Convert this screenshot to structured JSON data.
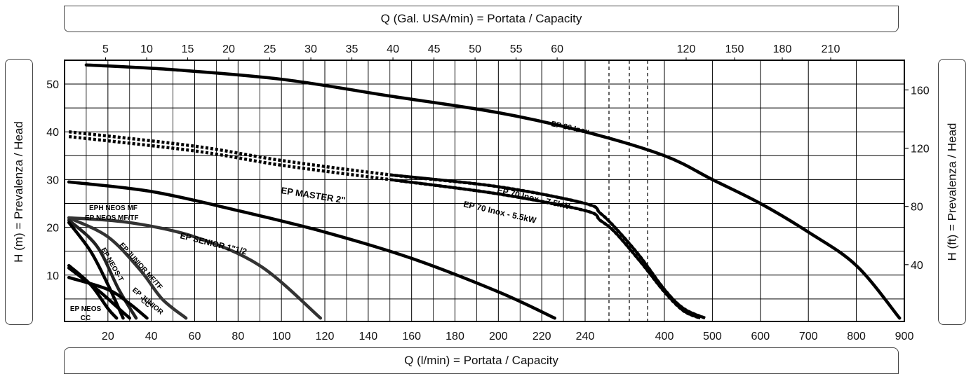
{
  "labels": {
    "top_axis": "Q (Gal. USA/min) = Portata / Capacity",
    "bottom_axis": "Q (l/min) = Portata / Capacity",
    "left_axis": "H (m) = Prevalenza / Head",
    "right_axis": "H (ft) = Prevalenza / Head"
  },
  "chart_data": {
    "type": "line",
    "xlabel": "Q (l/min) = Portata / Capacity",
    "ylabel": "H (m) = Prevalenza / Head",
    "x_ticks": [
      "20",
      "40",
      "60",
      "80",
      "100",
      "120",
      "140",
      "160",
      "180",
      "200",
      "220",
      "240",
      "400",
      "500",
      "600",
      "700",
      "800",
      "900"
    ],
    "x_top_ticks": [
      "5",
      "10",
      "15",
      "20",
      "25",
      "30",
      "35",
      "40",
      "45",
      "50",
      "55",
      "60",
      "120",
      "150",
      "180",
      "210"
    ],
    "y_ticks": [
      "10",
      "20",
      "30",
      "40",
      "50"
    ],
    "y_right_ticks": [
      "40",
      "80",
      "120",
      "160"
    ],
    "ylim": [
      0,
      55
    ],
    "grid": true,
    "series": [
      {
        "name": "EP 80 Inox",
        "label": "EP 80 Inox",
        "style": "solid",
        "points": [
          [
            10,
            54
          ],
          [
            50,
            53
          ],
          [
            100,
            51
          ],
          [
            150,
            47.5
          ],
          [
            200,
            44
          ],
          [
            240,
            40
          ],
          [
            400,
            35
          ],
          [
            500,
            30
          ],
          [
            600,
            25
          ],
          [
            700,
            19
          ],
          [
            800,
            12
          ],
          [
            890,
            1
          ]
        ]
      },
      {
        "name": "EP 70 Inox - 7.5kW",
        "label": "EP 70 Inox - 7.5kW",
        "style": "mixed",
        "points": [
          [
            2,
            40
          ],
          [
            60,
            37
          ],
          [
            100,
            34
          ],
          [
            150,
            31
          ],
          [
            200,
            28.5
          ],
          [
            240,
            25
          ],
          [
            270,
            23
          ],
          [
            300,
            20
          ],
          [
            350,
            14
          ],
          [
            400,
            7
          ],
          [
            440,
            3
          ],
          [
            485,
            1
          ]
        ]
      },
      {
        "name": "EP 70 Inox - 5.5kW",
        "label": "EP 70 Inox - 5.5kW",
        "style": "mixed",
        "points": [
          [
            2,
            39
          ],
          [
            60,
            36
          ],
          [
            100,
            33
          ],
          [
            150,
            30
          ],
          [
            200,
            27
          ],
          [
            240,
            23.5
          ],
          [
            270,
            21.5
          ],
          [
            300,
            19
          ],
          [
            350,
            13
          ],
          [
            400,
            6.5
          ],
          [
            440,
            2.5
          ],
          [
            475,
            1
          ]
        ]
      },
      {
        "name": "EP MASTER 2\"",
        "label": "EP MASTER 2\"",
        "style": "solid",
        "points": [
          [
            2,
            29.5
          ],
          [
            40,
            27.5
          ],
          [
            80,
            23.5
          ],
          [
            120,
            19
          ],
          [
            160,
            13.5
          ],
          [
            200,
            6.5
          ],
          [
            226,
            1
          ]
        ]
      },
      {
        "name": "EP SENIOR 1\"1/2",
        "label": "EP SENIOR 1\"1/2",
        "style": "solid",
        "points": [
          [
            2,
            22
          ],
          [
            30,
            21
          ],
          [
            60,
            18
          ],
          [
            90,
            12
          ],
          [
            118,
            1
          ]
        ]
      },
      {
        "name": "EPH NEOS MF",
        "label": "EPH NEOS MF",
        "style": "solid",
        "points": [
          [
            2,
            22
          ],
          [
            20,
            18
          ],
          [
            35,
            11
          ],
          [
            45,
            5
          ],
          [
            56,
            1
          ]
        ]
      },
      {
        "name": "EP NEOS MF/TF",
        "label": "EP NEOS MF/TF",
        "style": "solid",
        "points": [
          [
            2,
            21.5
          ],
          [
            15,
            16
          ],
          [
            25,
            7
          ],
          [
            33,
            1
          ]
        ]
      },
      {
        "name": "EP JUNIOR MF/TF",
        "label": "EP JUNIOR MF/TF",
        "style": "solid",
        "points": [
          [
            2,
            21
          ],
          [
            12,
            15
          ],
          [
            20,
            8
          ],
          [
            27,
            1
          ]
        ]
      },
      {
        "name": "EP NEOS-T",
        "label": "EP NEOS-T",
        "style": "solid",
        "points": [
          [
            2,
            11.5
          ],
          [
            15,
            7
          ],
          [
            25,
            3
          ],
          [
            30,
            1
          ]
        ]
      },
      {
        "name": "EP JUNIOR CC",
        "label": "EP JUNIOR CC",
        "style": "solid",
        "points": [
          [
            2,
            9.5
          ],
          [
            20,
            7
          ],
          [
            30,
            4
          ],
          [
            38,
            1
          ]
        ]
      },
      {
        "name": "EP NEOS CC",
        "label": "EP NEOS CC",
        "style": "solid",
        "points": [
          [
            2,
            12
          ],
          [
            12,
            8
          ],
          [
            20,
            3
          ],
          [
            24,
            1
          ]
        ]
      }
    ]
  }
}
